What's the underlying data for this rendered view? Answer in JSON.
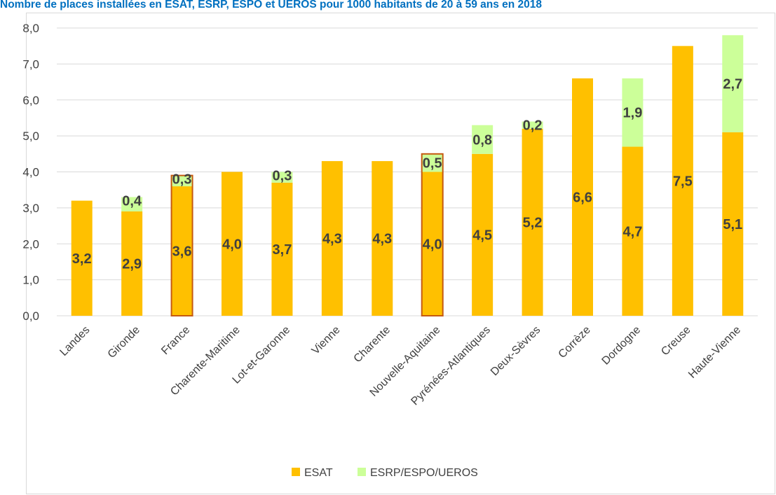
{
  "colors": {
    "title": "#0070c0",
    "esat": "#ffc000",
    "esrp": "#ccff99",
    "highlight_border": "#c55a11",
    "grid": "#d9d9d9",
    "axis_text": "#404040",
    "label_text": "#404040"
  },
  "chart_data": {
    "type": "bar",
    "stacked": true,
    "title": "Nombre de places installées en ESAT, ESRP, ESPO et UEROS pour 1000 habitants de 20 à 59 ans en 2018",
    "categories": [
      "Landes",
      "Gironde",
      "France",
      "Charente-Maritime",
      "Lot-et-Garonne",
      "Vienne",
      "Charente",
      "Nouvelle-Aquitaine",
      "Pyrénées-Atlantiques",
      "Deux-Sèvres",
      "Corrèze",
      "Dordogne",
      "Creuse",
      "Haute-Vienne"
    ],
    "highlighted_categories": [
      "France",
      "Nouvelle-Aquitaine"
    ],
    "series": [
      {
        "name": "ESAT",
        "color": "#ffc000",
        "values": [
          3.2,
          2.9,
          3.6,
          4.0,
          3.7,
          4.3,
          4.3,
          4.0,
          4.5,
          5.2,
          6.6,
          4.7,
          7.5,
          5.1
        ],
        "labels": [
          "3,2",
          "2,9",
          "3,6",
          "4,0",
          "3,7",
          "4,3",
          "4,3",
          "4,0",
          "4,5",
          "5,2",
          "6,6",
          "4,7",
          "7,5",
          "5,1"
        ]
      },
      {
        "name": "ESRP/ESPO/UEROS",
        "color": "#ccff99",
        "values": [
          0,
          0.4,
          0.3,
          0,
          0.3,
          0,
          0,
          0.5,
          0.8,
          0.2,
          0,
          1.9,
          0,
          2.7
        ],
        "labels": [
          "",
          "0,4",
          "0,3",
          "",
          "0,3",
          "",
          "",
          "0,5",
          "0,8",
          "0,2",
          "",
          "1,9",
          "",
          "2,7"
        ]
      }
    ],
    "ylim": [
      0,
      8
    ],
    "yticks": [
      "0,0",
      "1,0",
      "2,0",
      "3,0",
      "4,0",
      "5,0",
      "6,0",
      "7,0",
      "8,0"
    ],
    "grid": true,
    "legend_position": "bottom-center",
    "xlabel": "",
    "ylabel": ""
  }
}
